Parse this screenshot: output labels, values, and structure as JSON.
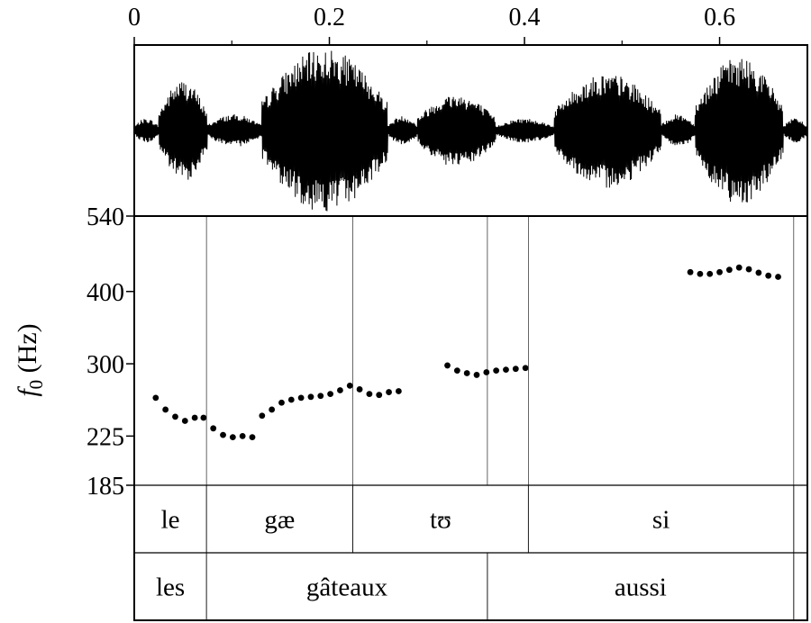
{
  "chart_data": {
    "type": "scatter",
    "x_axis": {
      "ticks": [
        0,
        0.2,
        0.4,
        0.6
      ],
      "tick_labels": [
        "0",
        "0.2",
        "0.4",
        "0.6"
      ],
      "range": [
        0,
        0.69
      ],
      "position": "top"
    },
    "y_axis": {
      "label_main": "f",
      "label_sub": "0",
      "label_unit": " (Hz)",
      "ticks": [
        540,
        400,
        300,
        225,
        185
      ],
      "tick_labels": [
        "540",
        "400",
        "300",
        "225",
        "185"
      ],
      "range": [
        185,
        540
      ],
      "scale": "log"
    },
    "waveform": {
      "segments": [
        {
          "start": 0.0,
          "end": 0.025,
          "amp": 0.15
        },
        {
          "start": 0.025,
          "end": 0.075,
          "amp": 0.62
        },
        {
          "start": 0.075,
          "end": 0.13,
          "amp": 0.2
        },
        {
          "start": 0.13,
          "end": 0.26,
          "amp": 1.0
        },
        {
          "start": 0.26,
          "end": 0.29,
          "amp": 0.18
        },
        {
          "start": 0.29,
          "end": 0.37,
          "amp": 0.45
        },
        {
          "start": 0.37,
          "end": 0.43,
          "amp": 0.15
        },
        {
          "start": 0.43,
          "end": 0.54,
          "amp": 0.7
        },
        {
          "start": 0.54,
          "end": 0.575,
          "amp": 0.2
        },
        {
          "start": 0.575,
          "end": 0.665,
          "amp": 0.9
        },
        {
          "start": 0.665,
          "end": 0.69,
          "amp": 0.15
        }
      ]
    },
    "series": [
      {
        "points": [
          [
            0.022,
            262
          ],
          [
            0.032,
            250
          ],
          [
            0.042,
            243
          ],
          [
            0.052,
            239
          ],
          [
            0.062,
            242
          ],
          [
            0.071,
            242
          ],
          [
            0.081,
            232
          ],
          [
            0.091,
            226
          ],
          [
            0.101,
            224
          ],
          [
            0.111,
            225
          ],
          [
            0.121,
            224
          ],
          [
            0.131,
            244
          ],
          [
            0.141,
            250
          ],
          [
            0.151,
            257
          ],
          [
            0.161,
            260
          ],
          [
            0.171,
            262
          ],
          [
            0.181,
            263
          ],
          [
            0.191,
            264
          ],
          [
            0.201,
            266
          ],
          [
            0.211,
            270
          ],
          [
            0.221,
            275
          ],
          [
            0.231,
            271
          ],
          [
            0.241,
            266
          ],
          [
            0.251,
            265
          ],
          [
            0.261,
            268
          ],
          [
            0.271,
            269
          ],
          [
            0.321,
            298
          ],
          [
            0.331,
            292
          ],
          [
            0.341,
            289
          ],
          [
            0.351,
            287
          ],
          [
            0.361,
            290
          ],
          [
            0.371,
            292
          ],
          [
            0.381,
            293
          ],
          [
            0.391,
            294
          ],
          [
            0.401,
            295
          ],
          [
            0.57,
            432
          ],
          [
            0.58,
            429
          ],
          [
            0.59,
            429
          ],
          [
            0.6,
            432
          ],
          [
            0.61,
            436
          ],
          [
            0.62,
            440
          ],
          [
            0.63,
            437
          ],
          [
            0.64,
            431
          ],
          [
            0.65,
            426
          ],
          [
            0.66,
            424
          ]
        ]
      }
    ],
    "phone_tier": {
      "boundaries": [
        0.0,
        0.074,
        0.224,
        0.404,
        0.676,
        0.69
      ],
      "labels": [
        "le",
        "gæ",
        "tʊ",
        "si",
        ""
      ]
    },
    "word_tier": {
      "boundaries": [
        0.0,
        0.074,
        0.362,
        0.676,
        0.69
      ],
      "labels": [
        "les",
        "gâteaux",
        "aussi",
        ""
      ]
    },
    "pitch_panel_vlines": [
      0.074,
      0.224,
      0.362,
      0.404,
      0.676
    ]
  }
}
